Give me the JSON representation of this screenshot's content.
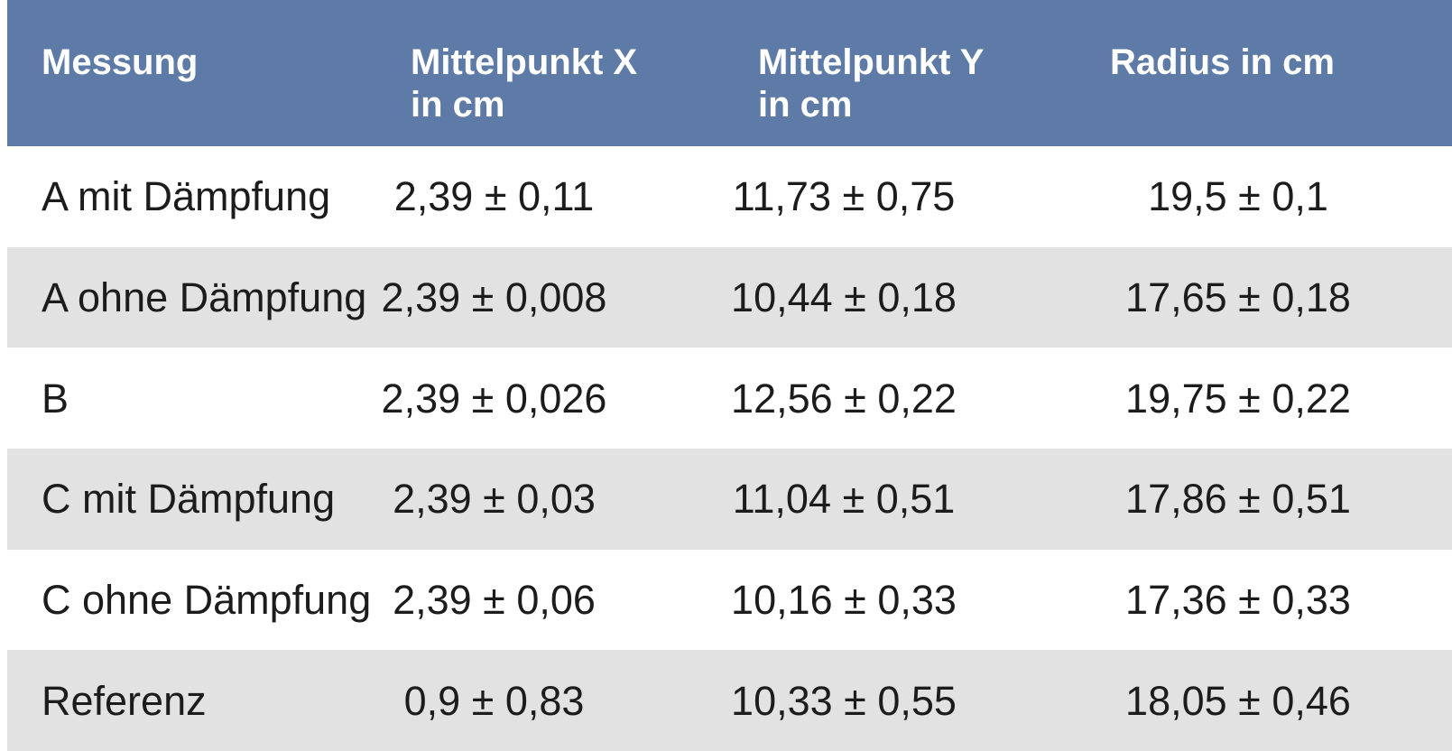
{
  "colors": {
    "header_bg": "#5d7ba6",
    "header_text": "#ffffff",
    "row_bg": "#ffffff",
    "row_alt_bg": "#e2e2e2",
    "body_text": "#1c1c1c"
  },
  "table": {
    "headers": [
      "Messung",
      "Mittelpunkt X\nin cm",
      "Mittelpunkt Y\nin cm",
      "Radius in cm"
    ],
    "rows": [
      [
        "A mit Dämpfung",
        "2,39 ± 0,11",
        "11,73 ± 0,75",
        "19,5 ± 0,1"
      ],
      [
        "A ohne Dämpfung",
        "2,39 ± 0,008",
        "10,44 ± 0,18",
        "17,65 ± 0,18"
      ],
      [
        "B",
        "2,39 ± 0,026",
        "12,56 ± 0,22",
        "19,75 ± 0,22"
      ],
      [
        "C mit Dämpfung",
        "2,39 ± 0,03",
        "11,04 ± 0,51",
        "17,86 ± 0,51"
      ],
      [
        "C ohne Dämpfung",
        "2,39 ± 0,06",
        "10,16 ± 0,33",
        "17,36 ± 0,33"
      ],
      [
        "Referenz",
        "0,9 ± 0,83",
        "10,33 ± 0,55",
        "18,05 ± 0,46"
      ]
    ]
  }
}
